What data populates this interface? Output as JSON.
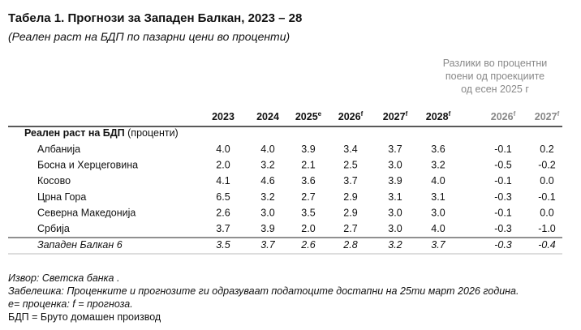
{
  "header": {
    "title": "Табела 1. Прогнози за Западен Балкан, 2023 – 28",
    "subtitle": "(Реален раст на БДП по пазарни цени во проценти)"
  },
  "side_note": [
    "Разлики во процентни",
    "поени од проекциите",
    "од есен 2025 г"
  ],
  "table": {
    "columns": [
      {
        "label": "2023",
        "color": "#111"
      },
      {
        "label": "2024",
        "color": "#111"
      },
      {
        "label": "2025",
        "sup": "e",
        "color": "#111"
      },
      {
        "label": "2026",
        "sup": "f",
        "color": "#111"
      },
      {
        "label": "2027",
        "sup": "f",
        "color": "#111"
      },
      {
        "label": "2028",
        "sup": "f",
        "color": "#111"
      },
      {
        "label": "2026",
        "sup": "f",
        "color": "#888"
      },
      {
        "label": "2027",
        "sup": "f",
        "color": "#888"
      }
    ],
    "section": {
      "bold": "Реален раст на БДП",
      "rest": " (проценти)"
    },
    "rows": [
      {
        "label": "Албанија",
        "cells": [
          "4.0",
          "4.0",
          "3.9",
          "3.4",
          "3.7",
          "3.6",
          "-0.1",
          "0.2"
        ]
      },
      {
        "label": "Босна и Херцеговина",
        "cells": [
          "2.0",
          "3.2",
          "2.1",
          "2.5",
          "3.0",
          "3.2",
          "-0.5",
          "-0.2"
        ]
      },
      {
        "label": "Косово",
        "cells": [
          "4.1",
          "4.6",
          "3.6",
          "3.7",
          "3.9",
          "4.0",
          "-0.1",
          "0.0"
        ]
      },
      {
        "label": "Црна Гора",
        "cells": [
          "6.5",
          "3.2",
          "2.7",
          "2.9",
          "3.1",
          "3.1",
          "-0.3",
          "-0.1"
        ]
      },
      {
        "label": "Северна Македонија",
        "cells": [
          "2.6",
          "3.0",
          "3.5",
          "2.9",
          "3.0",
          "3.0",
          "-0.1",
          "0.0"
        ]
      },
      {
        "label": "Србија",
        "cells": [
          "3.7",
          "3.9",
          "2.0",
          "2.7",
          "3.0",
          "4.0",
          "-0.3",
          "-1.0"
        ]
      }
    ],
    "total": {
      "label": "Западен Балкан 6",
      "cells": [
        "3.5",
        "3.7",
        "2.6",
        "2.8",
        "3.2",
        "3.7",
        "-0.3",
        "-0.4"
      ]
    }
  },
  "notes": [
    "Извор: Светска банка .",
    "Забелешка: Проценките и прогнозите ги одразуваат податоците достапни на 25ти март 2026 година.",
    "e= проценка: f = прогноза.",
    "БДП = Бруто домашен производ"
  ]
}
